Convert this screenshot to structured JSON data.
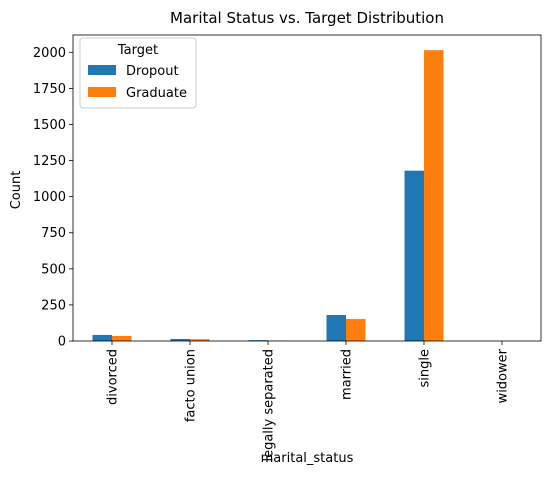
{
  "chart_data": {
    "type": "bar",
    "title": "Marital Status vs. Target Distribution",
    "xlabel": "marital_status",
    "ylabel": "Count",
    "categories": [
      "divorced",
      "facto union",
      "legally separated",
      "married",
      "single",
      "widower"
    ],
    "series": [
      {
        "name": "Dropout",
        "color": "#1f77b4",
        "values": [
          42,
          14,
          6,
          180,
          1180,
          0
        ]
      },
      {
        "name": "Graduate",
        "color": "#ff7f0e",
        "values": [
          35,
          13,
          2,
          152,
          2015,
          0
        ]
      }
    ],
    "ylim": [
      0,
      2120
    ],
    "yticks": [
      0,
      250,
      500,
      750,
      1000,
      1250,
      1500,
      1750,
      2000
    ],
    "legend": {
      "title": "Target",
      "position": "top-left"
    },
    "grid": false
  }
}
